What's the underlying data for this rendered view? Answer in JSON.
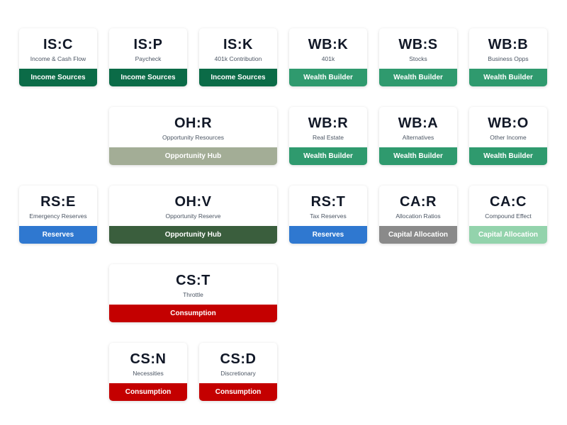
{
  "categories": {
    "income": {
      "label": "Income Sources",
      "color": "#0b6b47"
    },
    "wealth": {
      "label": "Wealth Builder",
      "color": "#2f9a6e"
    },
    "hub": {
      "label": "Opportunity Hub",
      "color": "#a3ad96"
    },
    "hub_dark": {
      "label": "Opportunity Hub",
      "color": "#3a5e3d"
    },
    "reserves": {
      "label": "Reserves",
      "color": "#2f78d0"
    },
    "alloc_grey": {
      "label": "Capital Allocation",
      "color": "#8a8a8a"
    },
    "alloc_light": {
      "label": "Capital Allocation",
      "color": "#93d3ac"
    },
    "consumption": {
      "label": "Consumption",
      "color": "#c40000"
    }
  },
  "cards": [
    {
      "code": "IS:C",
      "name": "Income & Cash Flow",
      "category": "income"
    },
    {
      "code": "IS:P",
      "name": "Paycheck",
      "category": "income"
    },
    {
      "code": "IS:K",
      "name": "401k Contribution",
      "category": "income"
    },
    {
      "code": "WB:K",
      "name": "401k",
      "category": "wealth"
    },
    {
      "code": "WB:S",
      "name": "Stocks",
      "category": "wealth"
    },
    {
      "code": "WB:B",
      "name": "Business Opps",
      "category": "wealth"
    },
    {
      "code": "OH:R",
      "name": "Opportunity Resources",
      "category": "hub"
    },
    {
      "code": "WB:R",
      "name": "Real Estate",
      "category": "wealth"
    },
    {
      "code": "WB:A",
      "name": "Alternatives",
      "category": "wealth"
    },
    {
      "code": "WB:O",
      "name": "Other Income",
      "category": "wealth"
    },
    {
      "code": "RS:E",
      "name": "Emergency Reserves",
      "category": "reserves"
    },
    {
      "code": "OH:V",
      "name": "Opportunity Reserve",
      "category": "hub_dark"
    },
    {
      "code": "RS:T",
      "name": "Tax Reserves",
      "category": "reserves"
    },
    {
      "code": "CA:R",
      "name": "Allocation Ratios",
      "category": "alloc_grey"
    },
    {
      "code": "CA:C",
      "name": "Compound Effect",
      "category": "alloc_light"
    },
    {
      "code": "CS:T",
      "name": "Throttle",
      "category": "consumption"
    },
    {
      "code": "CS:N",
      "name": "Necessities",
      "category": "consumption"
    },
    {
      "code": "CS:D",
      "name": "Discretionary",
      "category": "consumption"
    }
  ]
}
